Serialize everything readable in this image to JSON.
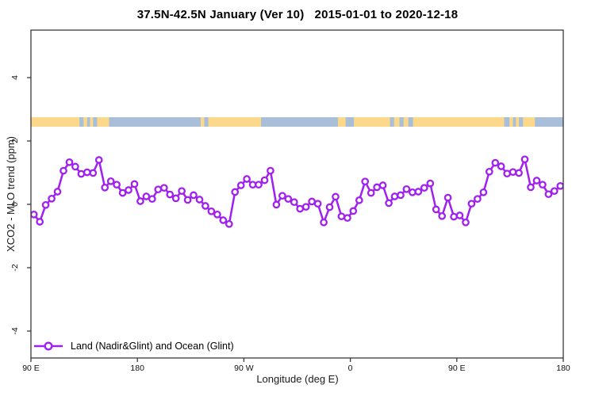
{
  "title": "37.5N-42.5N January (Ver 10)   2015-01-01 to 2020-12-18",
  "axes": {
    "xlabel": "Longitude (deg E)",
    "ylabel": "XCO2 - MLO trend (ppm)"
  },
  "legend": {
    "label": "Land (Nadir&Glint) and Ocean (Glint)",
    "marker": "open-circle-on-line"
  },
  "colors": {
    "series": "#A020F0",
    "land_strip": "#FBD88A",
    "ocean_strip": "#A9BFD9",
    "axis": "#3a3a3a",
    "background": "#ffffff"
  },
  "chart_data": {
    "type": "line",
    "title": "37.5N-42.5N January (Ver 10)   2015-01-01 to 2020-12-18",
    "xlabel": "Longitude (deg E)",
    "ylabel": "XCO2 - MLO trend (ppm)",
    "grid": false,
    "legend_position": "bottom-left-inside",
    "x_axis": {
      "range_deg": [
        90,
        540
      ],
      "ticks": [
        {
          "label": "90 E",
          "deg": 90
        },
        {
          "label": "180",
          "deg": 180
        },
        {
          "label": "90 W",
          "deg": 270
        },
        {
          "label": "0",
          "deg": 360
        },
        {
          "label": "90 E",
          "deg": 450
        },
        {
          "label": "180",
          "deg": 540
        }
      ]
    },
    "y_axis": {
      "range": [
        -4.9,
        5.5
      ],
      "ticks": [
        -4,
        -2,
        0,
        2,
        4
      ]
    },
    "map_strip": {
      "value_level": 2.6,
      "half_height_value": 0.15,
      "ocean_color": "#A9BFD9",
      "land_color": "#FBD88A",
      "land_segments_deg": [
        [
          90,
          131
        ],
        [
          134.5,
          137.5
        ],
        [
          140,
          142.5
        ],
        [
          146,
          156
        ],
        [
          233.5,
          236.5
        ],
        [
          240,
          284.5
        ],
        [
          349.5,
          356
        ],
        [
          363,
          393.5
        ],
        [
          397,
          401.5
        ],
        [
          405,
          409
        ],
        [
          413,
          490
        ],
        [
          494.5,
          497.5
        ],
        [
          500,
          502.5
        ],
        [
          506,
          516
        ]
      ]
    },
    "series": [
      {
        "name": "Land (Nadir&Glint) and Ocean (Glint)",
        "color": "#A020F0",
        "marker": "open-circle",
        "x_start_deg": 92.5,
        "x_step_deg": 5,
        "values": [
          -0.32,
          -0.55,
          -0.02,
          0.18,
          0.4,
          1.06,
          1.33,
          1.19,
          0.96,
          1.01,
          0.99,
          1.4,
          0.53,
          0.73,
          0.62,
          0.36,
          0.45,
          0.64,
          0.1,
          0.25,
          0.17,
          0.47,
          0.52,
          0.31,
          0.19,
          0.42,
          0.14,
          0.29,
          0.15,
          -0.05,
          -0.22,
          -0.32,
          -0.5,
          -0.62,
          0.39,
          0.6,
          0.8,
          0.62,
          0.62,
          0.76,
          1.06,
          -0.01,
          0.27,
          0.17,
          0.07,
          -0.14,
          -0.08,
          0.09,
          0.02,
          -0.57,
          -0.09,
          0.24,
          -0.38,
          -0.43,
          -0.21,
          0.13,
          0.72,
          0.36,
          0.54,
          0.6,
          0.04,
          0.25,
          0.29,
          0.48,
          0.38,
          0.4,
          0.52,
          0.66,
          -0.16,
          -0.37,
          0.21,
          -0.39,
          -0.35,
          -0.57,
          0.02,
          0.17,
          0.38,
          1.03,
          1.31,
          1.2,
          0.97,
          1.02,
          0.99,
          1.42,
          0.54,
          0.75,
          0.62,
          0.32,
          0.42,
          0.58
        ]
      }
    ]
  }
}
